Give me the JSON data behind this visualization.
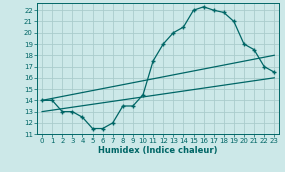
{
  "xlabel": "Humidex (Indice chaleur)",
  "bg_color": "#cce8e8",
  "grid_color": "#b0d4d4",
  "line_color": "#006666",
  "xlim": [
    -0.5,
    23.5
  ],
  "ylim": [
    11,
    22.6
  ],
  "xticks": [
    0,
    1,
    2,
    3,
    4,
    5,
    6,
    7,
    8,
    9,
    10,
    11,
    12,
    13,
    14,
    15,
    16,
    17,
    18,
    19,
    20,
    21,
    22,
    23
  ],
  "yticks": [
    11,
    12,
    13,
    14,
    15,
    16,
    17,
    18,
    19,
    20,
    21,
    22
  ],
  "line1_x": [
    0,
    1,
    2,
    3,
    4,
    5,
    6,
    7,
    8,
    9,
    10,
    11,
    12,
    13,
    14,
    15,
    16,
    17,
    18,
    19,
    20,
    21,
    22,
    23
  ],
  "line1_y": [
    14.0,
    14.0,
    13.0,
    13.0,
    12.5,
    11.5,
    11.5,
    12.0,
    13.5,
    13.5,
    14.5,
    17.5,
    19.0,
    20.0,
    20.5,
    22.0,
    22.3,
    22.0,
    21.8,
    21.0,
    19.0,
    18.5,
    17.0,
    16.5
  ],
  "line2_x": [
    0,
    23
  ],
  "line2_y": [
    14.0,
    18.0
  ],
  "line3_x": [
    0,
    23
  ],
  "line3_y": [
    13.0,
    16.0
  ]
}
